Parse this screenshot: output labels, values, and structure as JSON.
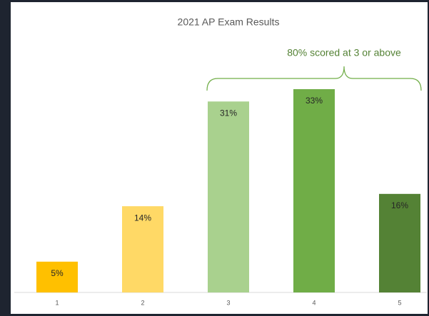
{
  "chart_data": {
    "type": "bar",
    "title": "2021 AP Exam Results",
    "annotation": "80% scored at 3 or above",
    "categories": [
      "1",
      "2",
      "3",
      "4",
      "5"
    ],
    "values": [
      5,
      14,
      31,
      33,
      16
    ],
    "value_labels": [
      "5%",
      "14%",
      "31%",
      "33%",
      "16%"
    ],
    "colors": [
      "#ffc000",
      "#ffd966",
      "#a9d18e",
      "#70ad47",
      "#548235"
    ]
  }
}
